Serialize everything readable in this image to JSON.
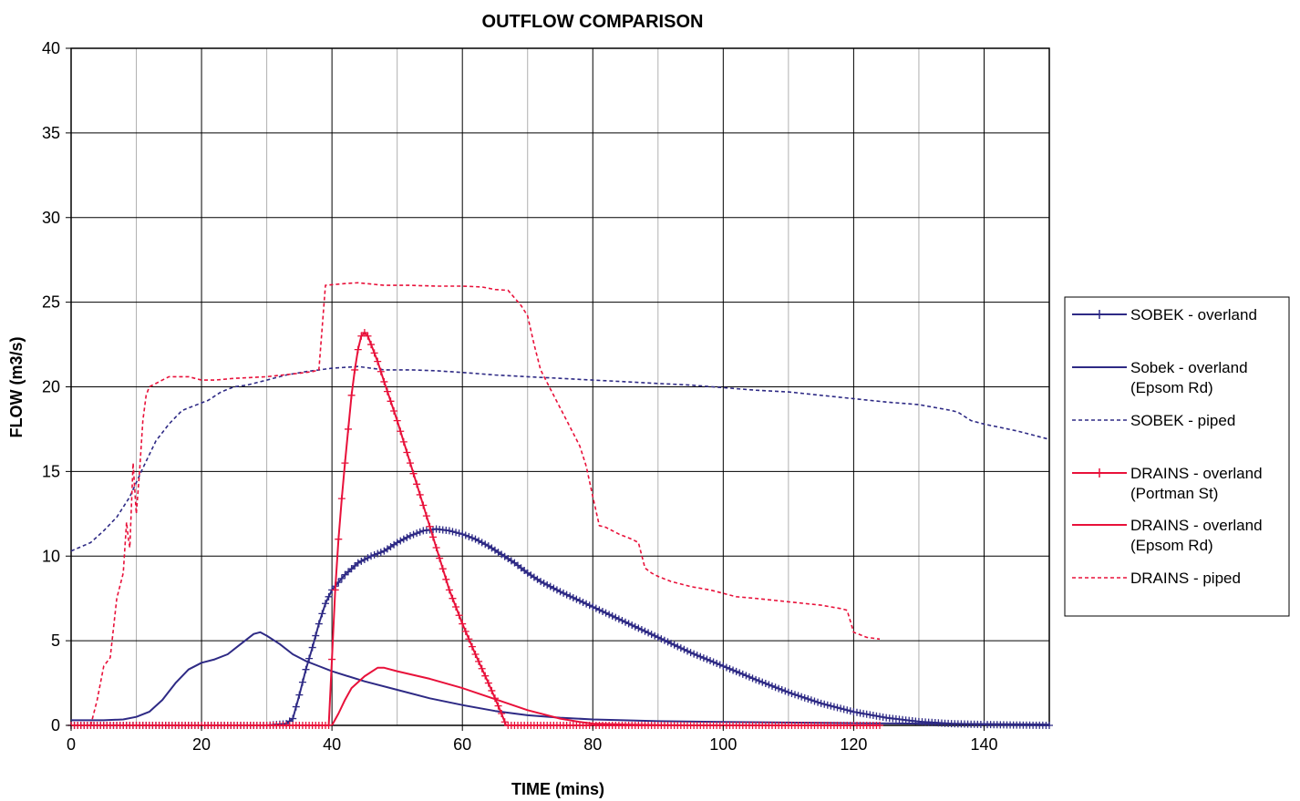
{
  "chart_data": {
    "type": "line",
    "title": "OUTFLOW COMPARISON",
    "xlabel": "TIME (mins)",
    "ylabel": "FLOW (m3/s)",
    "xlim": [
      0,
      150
    ],
    "ylim": [
      0,
      40
    ],
    "x_ticks": [
      0,
      20,
      40,
      60,
      80,
      100,
      120,
      140
    ],
    "y_ticks": [
      0,
      5,
      10,
      15,
      20,
      25,
      30,
      35,
      40
    ],
    "grid": "major and minor vertical, major horizontal",
    "legend_position": "right",
    "series": [
      {
        "name": "SOBEK - overland",
        "legend_lines": [
          "SOBEK - overland"
        ],
        "color": "#2e2a85",
        "dash": "solid",
        "marker": "plus",
        "points": [
          [
            0,
            0
          ],
          [
            30,
            0
          ],
          [
            33,
            0.1
          ],
          [
            34,
            0.4
          ],
          [
            35,
            1.8
          ],
          [
            36,
            3.3
          ],
          [
            37,
            4.6
          ],
          [
            38,
            6.0
          ],
          [
            39,
            7.2
          ],
          [
            40,
            8.0
          ],
          [
            42,
            8.9
          ],
          [
            44,
            9.6
          ],
          [
            46,
            10.0
          ],
          [
            48,
            10.3
          ],
          [
            50,
            10.8
          ],
          [
            52,
            11.2
          ],
          [
            54,
            11.5
          ],
          [
            56,
            11.6
          ],
          [
            58,
            11.5
          ],
          [
            60,
            11.3
          ],
          [
            62,
            11.0
          ],
          [
            64,
            10.6
          ],
          [
            66,
            10.1
          ],
          [
            68,
            9.6
          ],
          [
            70,
            9.0
          ],
          [
            72,
            8.5
          ],
          [
            75,
            7.9
          ],
          [
            80,
            7.0
          ],
          [
            85,
            6.1
          ],
          [
            90,
            5.2
          ],
          [
            95,
            4.3
          ],
          [
            100,
            3.5
          ],
          [
            105,
            2.7
          ],
          [
            110,
            1.95
          ],
          [
            115,
            1.3
          ],
          [
            120,
            0.8
          ],
          [
            125,
            0.45
          ],
          [
            130,
            0.22
          ],
          [
            135,
            0.1
          ],
          [
            140,
            0.05
          ],
          [
            145,
            0.02
          ],
          [
            150,
            0.0
          ]
        ]
      },
      {
        "name": "Sobek - overland (Epsom Rd)",
        "legend_lines": [
          "Sobek - overland",
          "(Epsom Rd)"
        ],
        "color": "#2e2a85",
        "dash": "solid",
        "marker": "none",
        "points": [
          [
            0,
            0.3
          ],
          [
            5,
            0.3
          ],
          [
            8,
            0.35
          ],
          [
            10,
            0.5
          ],
          [
            12,
            0.8
          ],
          [
            14,
            1.5
          ],
          [
            16,
            2.5
          ],
          [
            18,
            3.3
          ],
          [
            20,
            3.7
          ],
          [
            22,
            3.9
          ],
          [
            24,
            4.2
          ],
          [
            26,
            4.8
          ],
          [
            28,
            5.4
          ],
          [
            29,
            5.5
          ],
          [
            30,
            5.3
          ],
          [
            32,
            4.8
          ],
          [
            34,
            4.2
          ],
          [
            36,
            3.8
          ],
          [
            38,
            3.5
          ],
          [
            40,
            3.2
          ],
          [
            45,
            2.6
          ],
          [
            50,
            2.1
          ],
          [
            55,
            1.6
          ],
          [
            60,
            1.2
          ],
          [
            65,
            0.85
          ],
          [
            70,
            0.6
          ],
          [
            75,
            0.45
          ],
          [
            80,
            0.35
          ],
          [
            90,
            0.25
          ],
          [
            100,
            0.2
          ],
          [
            120,
            0.13
          ],
          [
            150,
            0.05
          ]
        ]
      },
      {
        "name": "SOBEK - piped",
        "legend_lines": [
          "SOBEK - piped"
        ],
        "color": "#2e2a85",
        "dash": "dotted",
        "marker": "none",
        "points": [
          [
            0,
            10.3
          ],
          [
            3,
            10.8
          ],
          [
            5,
            11.5
          ],
          [
            7,
            12.3
          ],
          [
            9,
            13.5
          ],
          [
            11,
            15.2
          ],
          [
            13,
            16.8
          ],
          [
            15,
            17.8
          ],
          [
            17,
            18.6
          ],
          [
            19,
            18.9
          ],
          [
            21,
            19.2
          ],
          [
            23,
            19.7
          ],
          [
            25,
            20.0
          ],
          [
            27,
            20.1
          ],
          [
            30,
            20.4
          ],
          [
            33,
            20.7
          ],
          [
            36,
            20.9
          ],
          [
            40,
            21.1
          ],
          [
            44,
            21.2
          ],
          [
            48,
            21.0
          ],
          [
            52,
            21.0
          ],
          [
            56,
            20.95
          ],
          [
            60,
            20.85
          ],
          [
            65,
            20.7
          ],
          [
            70,
            20.6
          ],
          [
            75,
            20.5
          ],
          [
            80,
            20.4
          ],
          [
            85,
            20.3
          ],
          [
            90,
            20.2
          ],
          [
            95,
            20.1
          ],
          [
            100,
            19.95
          ],
          [
            105,
            19.8
          ],
          [
            110,
            19.7
          ],
          [
            115,
            19.5
          ],
          [
            120,
            19.3
          ],
          [
            125,
            19.1
          ],
          [
            130,
            18.95
          ],
          [
            135,
            18.6
          ],
          [
            136,
            18.5
          ],
          [
            138,
            18.0
          ],
          [
            140,
            17.8
          ],
          [
            145,
            17.4
          ],
          [
            150,
            16.9
          ]
        ]
      },
      {
        "name": "DRAINS - overland (Portman St)",
        "legend_lines": [
          "DRAINS - overland",
          "(Portman St)"
        ],
        "color": "#e8113a",
        "dash": "solid",
        "marker": "plus",
        "points": [
          [
            0,
            0
          ],
          [
            39,
            0
          ],
          [
            39.5,
            0
          ],
          [
            40,
            3.9
          ],
          [
            40.5,
            8.0
          ],
          [
            41,
            11.0
          ],
          [
            41.5,
            13.4
          ],
          [
            42,
            15.5
          ],
          [
            42.5,
            17.5
          ],
          [
            43,
            19.5
          ],
          [
            43.5,
            21.0
          ],
          [
            44,
            22.2
          ],
          [
            44.5,
            23.0
          ],
          [
            45,
            23.2
          ],
          [
            45.5,
            23.0
          ],
          [
            46,
            22.5
          ],
          [
            47,
            21.5
          ],
          [
            48,
            20.3
          ],
          [
            50,
            18.0
          ],
          [
            52,
            15.5
          ],
          [
            54,
            13.0
          ],
          [
            56,
            10.5
          ],
          [
            58,
            8.0
          ],
          [
            60,
            6.0
          ],
          [
            62,
            4.2
          ],
          [
            64,
            2.5
          ],
          [
            65,
            1.6
          ],
          [
            66,
            0.7
          ],
          [
            66.7,
            0
          ],
          [
            80,
            0
          ],
          [
            100,
            0
          ],
          [
            124,
            0
          ]
        ]
      },
      {
        "name": "DRAINS - overland (Epsom Rd)",
        "legend_lines": [
          "DRAINS - overland",
          "(Epsom Rd)"
        ],
        "color": "#e8113a",
        "dash": "solid",
        "marker": "none",
        "points": [
          [
            40,
            0
          ],
          [
            41,
            0.7
          ],
          [
            42,
            1.5
          ],
          [
            43,
            2.2
          ],
          [
            45,
            2.9
          ],
          [
            47,
            3.4
          ],
          [
            48,
            3.4
          ],
          [
            50,
            3.2
          ],
          [
            55,
            2.75
          ],
          [
            60,
            2.2
          ],
          [
            65,
            1.55
          ],
          [
            70,
            0.9
          ],
          [
            75,
            0.4
          ],
          [
            78,
            0.2
          ],
          [
            80,
            0.1
          ],
          [
            85,
            0.05
          ],
          [
            90,
            0.02
          ],
          [
            95,
            0.0
          ]
        ]
      },
      {
        "name": "DRAINS - piped",
        "legend_lines": [
          "DRAINS - piped"
        ],
        "color": "#e8113a",
        "dash": "dotted",
        "marker": "none",
        "points": [
          [
            3,
            0
          ],
          [
            4,
            1.5
          ],
          [
            5,
            3.5
          ],
          [
            6,
            4.0
          ],
          [
            7,
            7.5
          ],
          [
            8,
            9.0
          ],
          [
            8.5,
            12.0
          ],
          [
            8.8,
            11.0
          ],
          [
            9,
            10.5
          ],
          [
            9.5,
            15.5
          ],
          [
            10,
            12.5
          ],
          [
            10.5,
            15.0
          ],
          [
            11,
            18.0
          ],
          [
            11.5,
            19.5
          ],
          [
            12,
            20.0
          ],
          [
            14,
            20.4
          ],
          [
            15,
            20.6
          ],
          [
            18,
            20.6
          ],
          [
            20,
            20.4
          ],
          [
            22,
            20.4
          ],
          [
            25,
            20.5
          ],
          [
            30,
            20.6
          ],
          [
            35,
            20.8
          ],
          [
            37,
            20.9
          ],
          [
            38,
            21.0
          ],
          [
            38.5,
            23.5
          ],
          [
            39,
            26.0
          ],
          [
            42,
            26.1
          ],
          [
            44,
            26.15
          ],
          [
            48,
            26.0
          ],
          [
            52,
            26.0
          ],
          [
            56,
            25.95
          ],
          [
            60,
            25.95
          ],
          [
            63,
            25.9
          ],
          [
            65,
            25.75
          ],
          [
            67,
            25.7
          ],
          [
            69,
            24.8
          ],
          [
            70,
            24.2
          ],
          [
            71,
            22.5
          ],
          [
            72,
            21.0
          ],
          [
            74,
            19.5
          ],
          [
            76,
            18.0
          ],
          [
            78,
            16.5
          ],
          [
            79,
            15.3
          ],
          [
            80,
            13.5
          ],
          [
            81,
            11.8
          ],
          [
            82,
            11.7
          ],
          [
            84,
            11.3
          ],
          [
            86,
            11.0
          ],
          [
            87,
            10.8
          ],
          [
            88,
            9.3
          ],
          [
            89,
            9.0
          ],
          [
            90,
            8.8
          ],
          [
            92,
            8.5
          ],
          [
            95,
            8.2
          ],
          [
            98,
            8.0
          ],
          [
            100,
            7.8
          ],
          [
            101,
            7.7
          ],
          [
            102,
            7.6
          ],
          [
            105,
            7.5
          ],
          [
            110,
            7.3
          ],
          [
            115,
            7.1
          ],
          [
            118,
            6.9
          ],
          [
            119,
            6.8
          ],
          [
            120,
            5.5
          ],
          [
            122,
            5.2
          ],
          [
            124,
            5.1
          ]
        ]
      }
    ]
  }
}
